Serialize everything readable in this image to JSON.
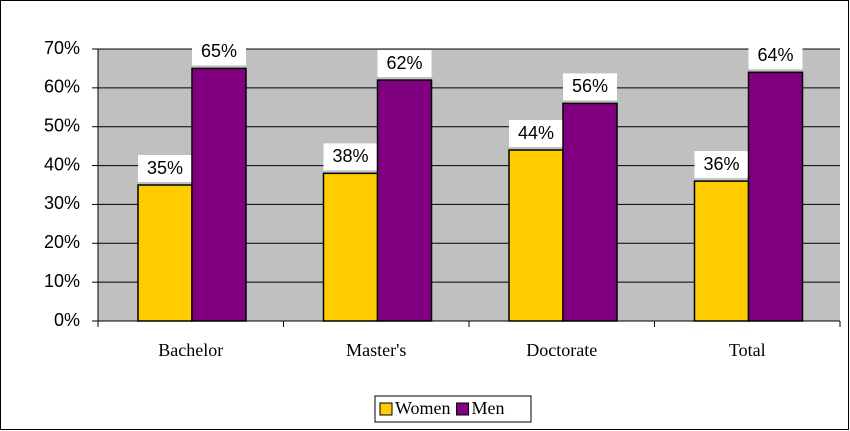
{
  "chart_data": {
    "type": "bar",
    "categories": [
      "Bachelor",
      "Master's",
      "Doctorate",
      "Total"
    ],
    "series": [
      {
        "name": "Women",
        "color": "#ffcc00",
        "values": [
          35,
          38,
          44,
          36
        ],
        "value_labels": [
          "35%",
          "38%",
          "44%",
          "36%"
        ]
      },
      {
        "name": "Men",
        "color": "#800080",
        "values": [
          65,
          62,
          56,
          64
        ],
        "value_labels": [
          "65%",
          "62%",
          "56%",
          "64%"
        ]
      }
    ],
    "ylim": [
      0,
      70
    ],
    "yticks": [
      {
        "value": 0,
        "label": "0%"
      },
      {
        "value": 10,
        "label": "10%"
      },
      {
        "value": 20,
        "label": "20%"
      },
      {
        "value": 30,
        "label": "30%"
      },
      {
        "value": 40,
        "label": "40%"
      },
      {
        "value": 50,
        "label": "50%"
      },
      {
        "value": 60,
        "label": "60%"
      },
      {
        "value": 70,
        "label": "70%"
      }
    ],
    "grid": true,
    "legend": "bottom",
    "plot_background": "#c0c0c0"
  }
}
